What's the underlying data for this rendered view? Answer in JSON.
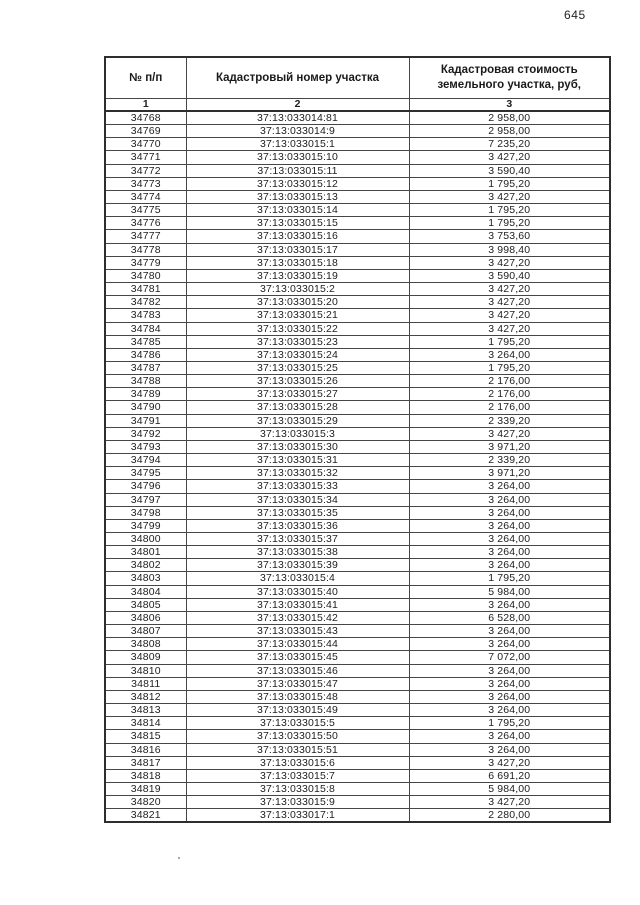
{
  "page": {
    "number": "645"
  },
  "table": {
    "headers": [
      "№ п/п",
      "Кадастровый номер участка",
      "Кадастровая стоимость земельного участка, руб,"
    ],
    "column_indices": [
      "1",
      "2",
      "3"
    ],
    "rows": [
      [
        "34768",
        "37:13:033014:81",
        "2 958,00"
      ],
      [
        "34769",
        "37:13:033014:9",
        "2 958,00"
      ],
      [
        "34770",
        "37:13:033015:1",
        "7 235,20"
      ],
      [
        "34771",
        "37:13:033015:10",
        "3 427,20"
      ],
      [
        "34772",
        "37:13:033015:11",
        "3 590,40"
      ],
      [
        "34773",
        "37:13:033015:12",
        "1 795,20"
      ],
      [
        "34774",
        "37:13:033015:13",
        "3 427,20"
      ],
      [
        "34775",
        "37:13:033015:14",
        "1 795,20"
      ],
      [
        "34776",
        "37:13:033015:15",
        "1 795,20"
      ],
      [
        "34777",
        "37:13:033015:16",
        "3 753,60"
      ],
      [
        "34778",
        "37:13:033015:17",
        "3 998,40"
      ],
      [
        "34779",
        "37:13:033015:18",
        "3 427,20"
      ],
      [
        "34780",
        "37:13:033015:19",
        "3 590,40"
      ],
      [
        "34781",
        "37:13:033015:2",
        "3 427,20"
      ],
      [
        "34782",
        "37:13:033015:20",
        "3 427,20"
      ],
      [
        "34783",
        "37:13:033015:21",
        "3 427,20"
      ],
      [
        "34784",
        "37:13:033015:22",
        "3 427,20"
      ],
      [
        "34785",
        "37:13:033015:23",
        "1 795,20"
      ],
      [
        "34786",
        "37:13:033015:24",
        "3 264,00"
      ],
      [
        "34787",
        "37:13:033015:25",
        "1 795,20"
      ],
      [
        "34788",
        "37:13:033015:26",
        "2 176,00"
      ],
      [
        "34789",
        "37:13:033015:27",
        "2 176,00"
      ],
      [
        "34790",
        "37:13:033015:28",
        "2 176,00"
      ],
      [
        "34791",
        "37:13:033015:29",
        "2 339,20"
      ],
      [
        "34792",
        "37:13:033015:3",
        "3 427,20"
      ],
      [
        "34793",
        "37:13:033015:30",
        "3 971,20"
      ],
      [
        "34794",
        "37:13:033015:31",
        "2 339,20"
      ],
      [
        "34795",
        "37:13:033015:32",
        "3 971,20"
      ],
      [
        "34796",
        "37:13:033015:33",
        "3 264,00"
      ],
      [
        "34797",
        "37:13:033015:34",
        "3 264,00"
      ],
      [
        "34798",
        "37:13:033015:35",
        "3 264,00"
      ],
      [
        "34799",
        "37:13:033015:36",
        "3 264,00"
      ],
      [
        "34800",
        "37:13:033015:37",
        "3 264,00"
      ],
      [
        "34801",
        "37:13:033015:38",
        "3 264,00"
      ],
      [
        "34802",
        "37:13:033015:39",
        "3 264,00"
      ],
      [
        "34803",
        "37:13:033015:4",
        "1 795,20"
      ],
      [
        "34804",
        "37:13:033015:40",
        "5 984,00"
      ],
      [
        "34805",
        "37:13:033015:41",
        "3 264,00"
      ],
      [
        "34806",
        "37:13:033015:42",
        "6 528,00"
      ],
      [
        "34807",
        "37:13:033015:43",
        "3 264,00"
      ],
      [
        "34808",
        "37:13:033015:44",
        "3 264,00"
      ],
      [
        "34809",
        "37:13:033015:45",
        "7 072,00"
      ],
      [
        "34810",
        "37:13:033015:46",
        "3 264,00"
      ],
      [
        "34811",
        "37:13:033015:47",
        "3 264,00"
      ],
      [
        "34812",
        "37:13:033015:48",
        "3 264,00"
      ],
      [
        "34813",
        "37:13:033015:49",
        "3 264,00"
      ],
      [
        "34814",
        "37:13:033015:5",
        "1 795,20"
      ],
      [
        "34815",
        "37:13:033015:50",
        "3 264,00"
      ],
      [
        "34816",
        "37:13:033015:51",
        "3 264,00"
      ],
      [
        "34817",
        "37:13:033015:6",
        "3 427,20"
      ],
      [
        "34818",
        "37:13:033015:7",
        "6 691,20"
      ],
      [
        "34819",
        "37:13:033015:8",
        "5 984,00"
      ],
      [
        "34820",
        "37:13:033015:9",
        "3 427,20"
      ],
      [
        "34821",
        "37:13:033017:1",
        "2 280,00"
      ]
    ]
  }
}
